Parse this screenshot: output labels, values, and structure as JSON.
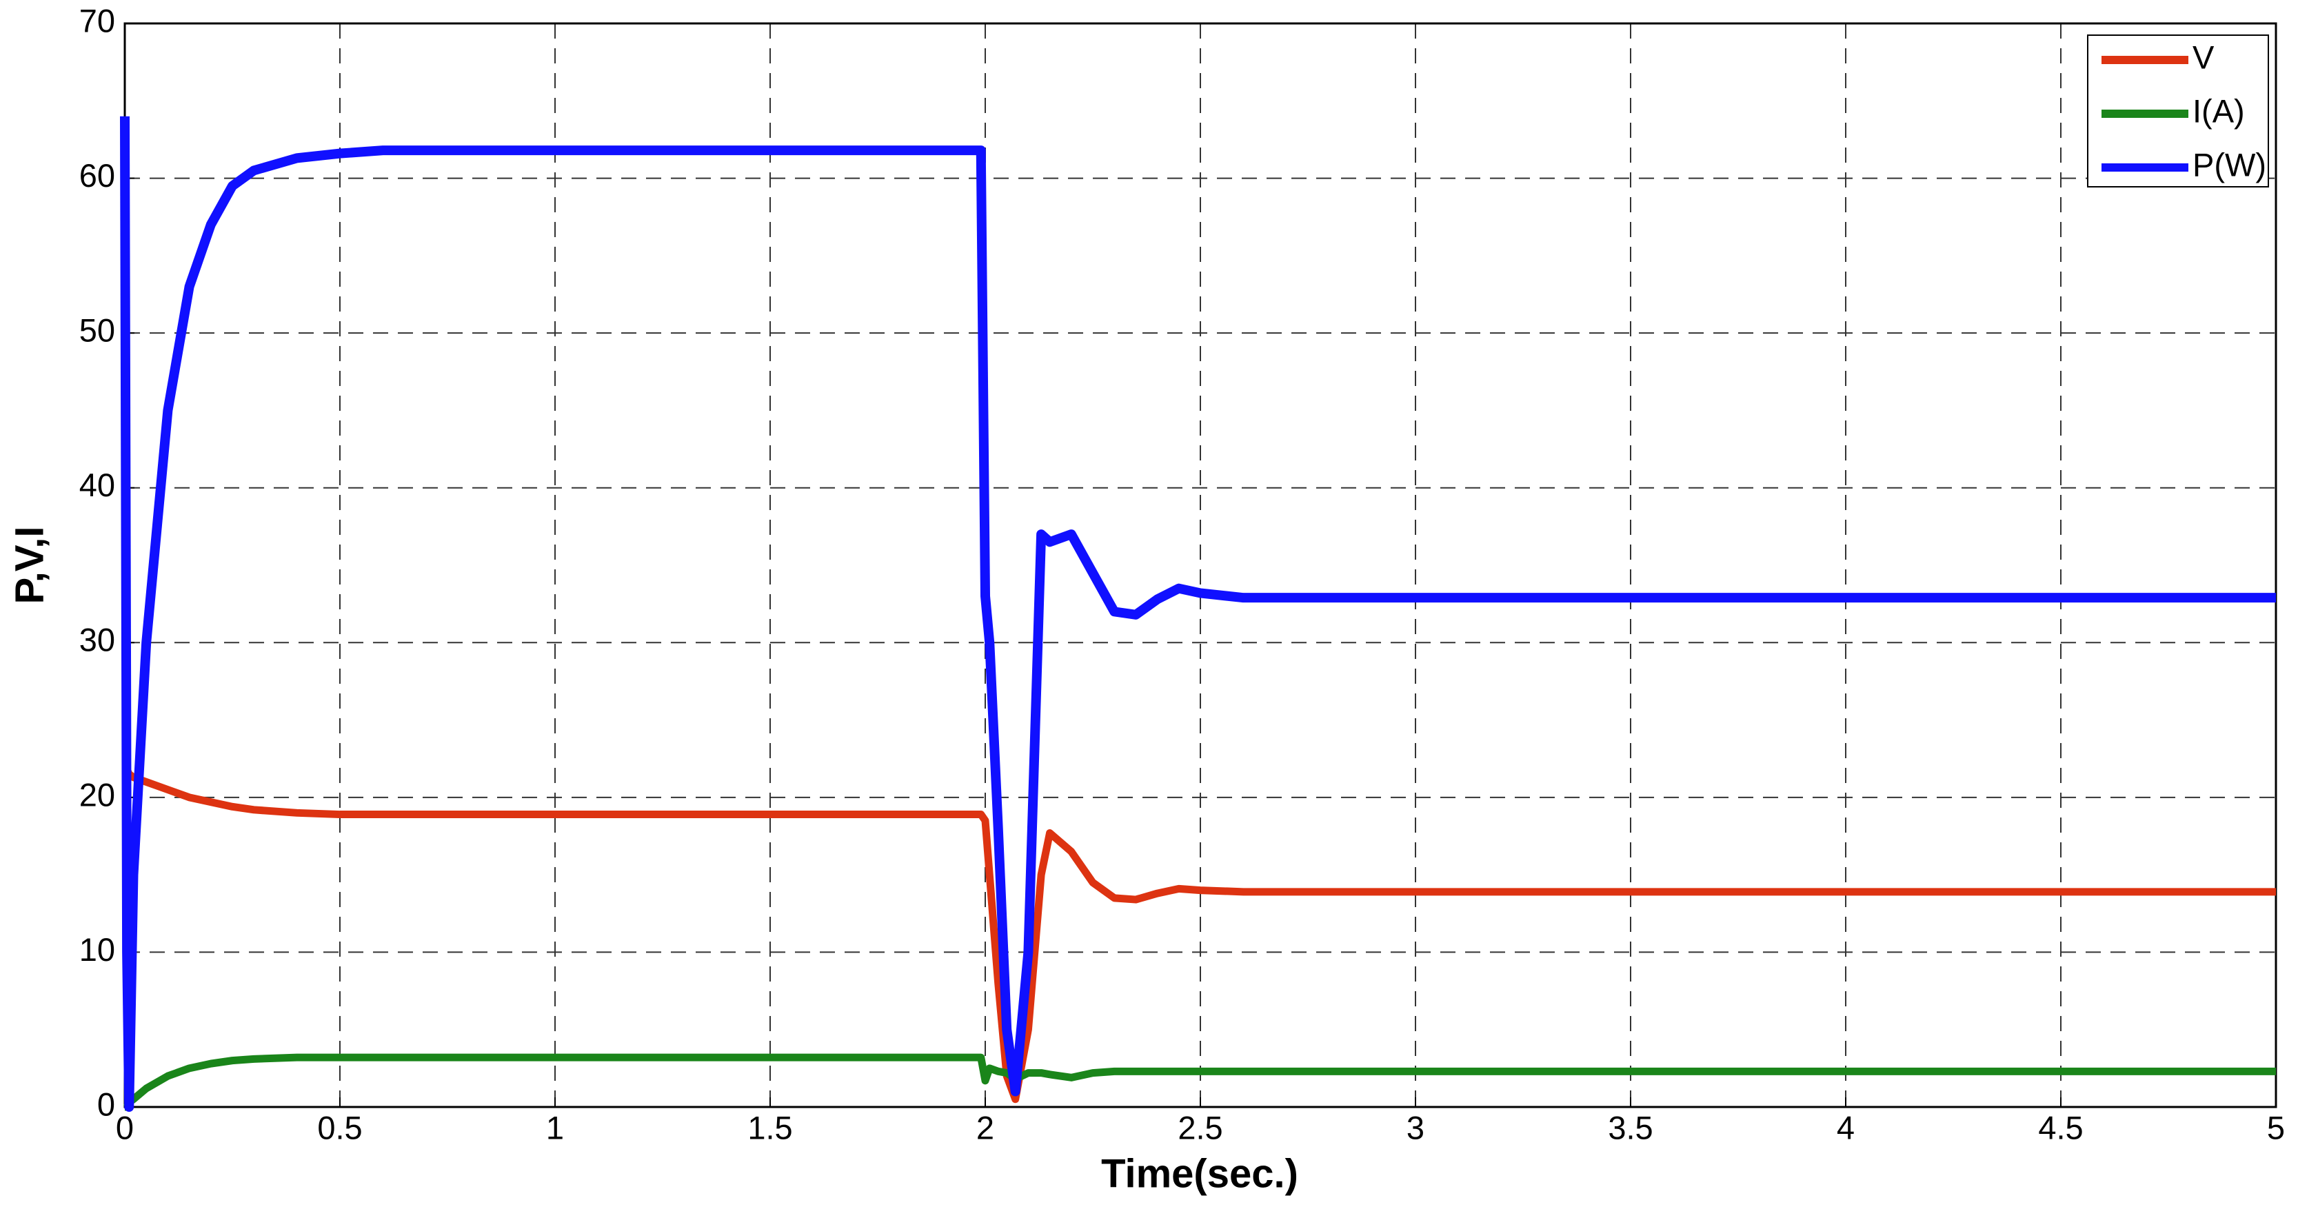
{
  "chart_data": {
    "type": "line",
    "xlabel": "Time(sec.)",
    "ylabel": "P,V,I",
    "x": [
      0,
      0.005,
      0.01,
      0.02,
      0.05,
      0.1,
      0.15,
      0.2,
      0.25,
      0.3,
      0.4,
      0.5,
      0.6,
      1,
      1.5,
      1.99,
      2.0,
      2.01,
      2.03,
      2.05,
      2.07,
      2.1,
      2.13,
      2.15,
      2.2,
      2.25,
      2.3,
      2.35,
      2.4,
      2.45,
      2.5,
      2.6,
      3,
      4,
      5
    ],
    "series": [
      {
        "name": "V",
        "color": "#dd3311",
        "values": [
          22,
          21.8,
          21.5,
          21.3,
          21,
          20.5,
          20,
          19.7,
          19.4,
          19.2,
          19,
          18.9,
          18.9,
          18.9,
          18.9,
          18.9,
          18.5,
          15,
          8,
          2,
          0.5,
          5,
          15,
          17.7,
          16.5,
          14.5,
          13.5,
          13.4,
          13.8,
          14.1,
          14,
          13.9,
          13.9,
          13.9,
          13.9
        ]
      },
      {
        "name": "I(A)",
        "color": "#1a851a",
        "values": [
          0,
          0,
          0.3,
          0.5,
          1.2,
          2,
          2.5,
          2.8,
          3,
          3.1,
          3.2,
          3.2,
          3.2,
          3.2,
          3.2,
          3.2,
          1.7,
          2.5,
          2.3,
          2.2,
          1.8,
          2.2,
          2.2,
          2.1,
          1.9,
          2.2,
          2.3,
          2.3,
          2.3,
          2.3,
          2.3,
          2.3,
          2.3,
          2.3,
          2.3
        ]
      },
      {
        "name": "P(W)",
        "color": "#1010ff",
        "values": [
          64,
          10,
          0,
          15,
          30,
          45,
          53,
          57,
          59.5,
          60.5,
          61.3,
          61.6,
          61.8,
          61.8,
          61.8,
          61.8,
          33,
          30,
          18,
          5,
          1,
          10,
          37,
          36.5,
          37,
          34.5,
          32,
          31.8,
          32.8,
          33.5,
          33.2,
          32.9,
          32.9,
          32.9,
          32.9
        ]
      }
    ],
    "xlim": [
      0,
      5
    ],
    "xticks": [
      0,
      0.5,
      1,
      1.5,
      2,
      2.5,
      3,
      3.5,
      4,
      4.5,
      5
    ],
    "ylim": [
      0,
      70
    ],
    "yticks": [
      0,
      10,
      20,
      30,
      40,
      50,
      60,
      70
    ],
    "grid": true,
    "legend": "upper-right"
  }
}
